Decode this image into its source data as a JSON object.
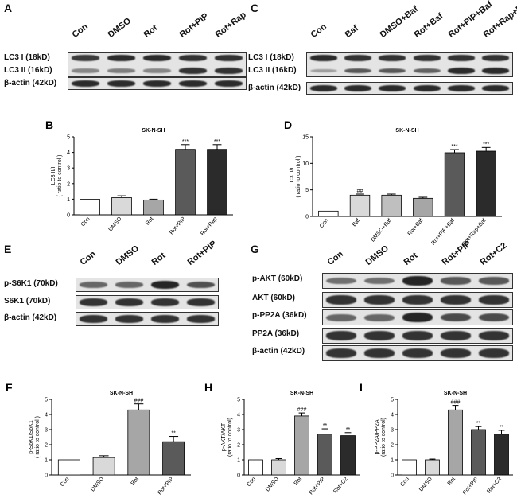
{
  "panels": [
    {
      "id": "A",
      "letter": "A",
      "lanes": [
        "Con",
        "DMSO",
        "Rot",
        "Rot+PIP",
        "Rot+Rap"
      ],
      "rows": [
        {
          "label": "LC3 I (18kD)",
          "levels": [
            0.8,
            0.9,
            0.9,
            0.85,
            0.85
          ]
        },
        {
          "label": "LC3 II (16kD)",
          "levels": [
            0.3,
            0.35,
            0.3,
            0.85,
            0.85
          ]
        },
        {
          "label": "β-actin (42kD)",
          "levels": [
            0.9,
            0.9,
            0.9,
            0.9,
            0.9
          ]
        }
      ],
      "row_groups": [
        [
          0,
          1
        ],
        [
          2
        ]
      ]
    },
    {
      "id": "C",
      "letter": "C",
      "lanes": [
        "Con",
        "Baf",
        "DMSO+Baf",
        "Rot+Baf",
        "Rot+PIP+Baf",
        "Rot+Rap+Baf"
      ],
      "rows": [
        {
          "label": "LC3 I (18kD)",
          "levels": [
            0.9,
            0.85,
            0.85,
            0.85,
            0.85,
            0.85
          ]
        },
        {
          "label": "LC3 II (16kD)",
          "levels": [
            0.15,
            0.6,
            0.6,
            0.55,
            0.9,
            0.9
          ]
        },
        {
          "label": "β-actin (42kD)",
          "levels": [
            0.9,
            0.9,
            0.9,
            0.9,
            0.9,
            0.9
          ]
        }
      ],
      "row_groups": [
        [
          0,
          1
        ],
        [
          2
        ]
      ]
    },
    {
      "id": "E",
      "letter": "E",
      "lanes": [
        "Con",
        "DMSO",
        "Rot",
        "Rot+PIP"
      ],
      "rows": [
        {
          "label": "p-S6K1 (70kD)",
          "levels": [
            0.5,
            0.5,
            0.95,
            0.65
          ]
        },
        {
          "label": "S6K1 (70kD)",
          "levels": [
            0.85,
            0.85,
            0.85,
            0.85
          ]
        },
        {
          "label": "β-actin (42kD)",
          "levels": [
            0.85,
            0.85,
            0.85,
            0.85
          ]
        }
      ],
      "row_groups": [
        [
          0
        ],
        [
          1
        ],
        [
          2
        ]
      ]
    },
    {
      "id": "G",
      "letter": "G",
      "lanes": [
        "Con",
        "DMSO",
        "Rot",
        "Rot+PIP",
        "Rot+C2"
      ],
      "rows": [
        {
          "label": "p-AKT (60kD)",
          "levels": [
            0.45,
            0.45,
            0.95,
            0.6,
            0.6
          ]
        },
        {
          "label": "AKT (60kD)",
          "levels": [
            0.85,
            0.85,
            0.85,
            0.85,
            0.85
          ]
        },
        {
          "label": "p-PP2A (36kD)",
          "levels": [
            0.5,
            0.5,
            0.95,
            0.7,
            0.7
          ]
        },
        {
          "label": "PP2A (36kD)",
          "levels": [
            0.85,
            0.85,
            0.85,
            0.85,
            0.85
          ]
        },
        {
          "label": "β-actin (42kD)",
          "levels": [
            0.85,
            0.85,
            0.85,
            0.85,
            0.85
          ]
        }
      ],
      "row_groups": [
        [
          0
        ],
        [
          1
        ],
        [
          2
        ],
        [
          3
        ],
        [
          4
        ]
      ]
    }
  ],
  "chart_data": [
    {
      "id": "B",
      "letter": "B",
      "type": "bar",
      "title": "SK-N-SH",
      "ylabel": [
        "LC3 II/I",
        "( ratio to control )"
      ],
      "categories": [
        "Con",
        "DMSO",
        "Rot",
        "Rot+PIP",
        "Rot+Rap"
      ],
      "values": [
        1.0,
        1.1,
        0.95,
        4.2,
        4.2
      ],
      "errors": [
        0,
        0.12,
        0.05,
        0.3,
        0.3
      ],
      "annotations": [
        "",
        "",
        "",
        "***",
        "***"
      ],
      "colors": [
        "#ffffff",
        "#d9d9d9",
        "#a6a6a6",
        "#5a5a5a",
        "#2b2b2b"
      ],
      "ylim": [
        0,
        5
      ],
      "yticks": [
        0,
        1,
        2,
        3,
        4,
        5
      ]
    },
    {
      "id": "D",
      "letter": "D",
      "type": "bar",
      "title": "SK-N-SH",
      "ylabel": [
        "LC3 II/I",
        "( ratio to control )"
      ],
      "categories": [
        "Con",
        "Baf",
        "DMSO+Baf",
        "Rot+Baf",
        "Rot+PIP+Baf",
        "Rot+Rap+Baf"
      ],
      "values": [
        1.0,
        4.0,
        4.0,
        3.4,
        12.0,
        12.3
      ],
      "errors": [
        0,
        0.2,
        0.2,
        0.2,
        0.6,
        0.7
      ],
      "annotations": [
        "",
        "##",
        "",
        "",
        "***",
        "***"
      ],
      "colors": [
        "#ffffff",
        "#d9d9d9",
        "#bfbfbf",
        "#a6a6a6",
        "#5a5a5a",
        "#2b2b2b"
      ],
      "ylim": [
        0,
        15
      ],
      "yticks": [
        0,
        5,
        10,
        15
      ]
    },
    {
      "id": "F",
      "letter": "F",
      "type": "bar",
      "title": "SK-N-SH",
      "ylabel": [
        "p-S6K1/S6K1",
        "( ratio to control )"
      ],
      "categories": [
        "Con",
        "DMSO",
        "Rot",
        "Rot+PIP"
      ],
      "values": [
        1.0,
        1.15,
        4.3,
        2.2
      ],
      "errors": [
        0,
        0.12,
        0.4,
        0.35
      ],
      "annotations": [
        "",
        "",
        "###",
        "**"
      ],
      "colors": [
        "#ffffff",
        "#d9d9d9",
        "#a6a6a6",
        "#5a5a5a"
      ],
      "ylim": [
        0,
        5
      ],
      "yticks": [
        0,
        1,
        2,
        3,
        4,
        5
      ]
    },
    {
      "id": "H",
      "letter": "H",
      "type": "bar",
      "title": "SK-N-SH",
      "ylabel": [
        "p-AKT/AKT",
        "(ratio to control)"
      ],
      "categories": [
        "Con",
        "DMSO",
        "Rot",
        "Rot+PIP",
        "Rot+C2"
      ],
      "values": [
        1.0,
        1.0,
        3.9,
        2.7,
        2.6
      ],
      "errors": [
        0,
        0.08,
        0.2,
        0.35,
        0.2
      ],
      "annotations": [
        "",
        "",
        "###",
        "**",
        "**"
      ],
      "colors": [
        "#ffffff",
        "#d9d9d9",
        "#a6a6a6",
        "#5a5a5a",
        "#2b2b2b"
      ],
      "ylim": [
        0,
        5
      ],
      "yticks": [
        0,
        1,
        2,
        3,
        4,
        5
      ]
    },
    {
      "id": "I",
      "letter": "I",
      "type": "bar",
      "title": "SK-N-SH",
      "ylabel": [
        "p-PP2A/PP2A",
        "(ratio to control)"
      ],
      "categories": [
        "Con",
        "DMSO",
        "Rot",
        "Rot+PIP",
        "Rot+C2"
      ],
      "values": [
        1.0,
        1.0,
        4.3,
        3.0,
        2.7
      ],
      "errors": [
        0,
        0.05,
        0.3,
        0.2,
        0.25
      ],
      "annotations": [
        "",
        "",
        "###",
        "**",
        "**"
      ],
      "colors": [
        "#ffffff",
        "#d9d9d9",
        "#a6a6a6",
        "#5a5a5a",
        "#2b2b2b"
      ],
      "ylim": [
        0,
        5
      ],
      "yticks": [
        0,
        1,
        2,
        3,
        4,
        5
      ]
    }
  ]
}
